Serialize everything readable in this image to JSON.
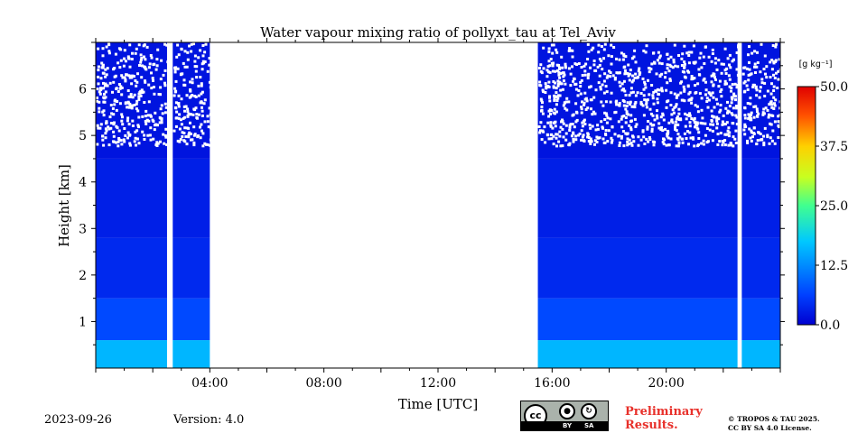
{
  "chart_data": {
    "type": "heatmap",
    "title": "Water vapour mixing ratio of pollyxt_tau at Tel_Aviv",
    "xlabel": "Time [UTC]",
    "ylabel": "Height [km]",
    "xlim_hours": [
      0,
      24
    ],
    "ylim_km": [
      0,
      7
    ],
    "x_ticks": [
      {
        "hour": 4,
        "label": "04:00"
      },
      {
        "hour": 8,
        "label": "08:00"
      },
      {
        "hour": 12,
        "label": "12:00"
      },
      {
        "hour": 16,
        "label": "16:00"
      },
      {
        "hour": 20,
        "label": "20:00"
      }
    ],
    "y_ticks": [
      1,
      2,
      3,
      4,
      5,
      6
    ],
    "colorbar": {
      "unit_label": "[g kg⁻¹]",
      "min": 0.0,
      "max": 50.0,
      "ticks": [
        "0.0",
        "12.5",
        "25.0",
        "37.5",
        "50.0"
      ],
      "colormap": "jet"
    },
    "data_segments": [
      {
        "start_hour": 0.0,
        "end_hour": 2.5,
        "top_km": 7.0
      },
      {
        "start_hour": 2.7,
        "end_hour": 4.0,
        "top_km": 7.0
      },
      {
        "start_hour": 15.5,
        "end_hour": 22.5,
        "top_km": 7.0
      },
      {
        "start_hour": 22.65,
        "end_hour": 24.0,
        "top_km": 7.0
      }
    ],
    "layers": [
      {
        "bottom_km": 0.0,
        "top_km": 0.6,
        "value": 16
      },
      {
        "bottom_km": 0.6,
        "top_km": 1.5,
        "value": 7
      },
      {
        "bottom_km": 1.5,
        "top_km": 2.8,
        "value": 4
      },
      {
        "bottom_km": 2.8,
        "top_km": 4.5,
        "value": 3
      },
      {
        "bottom_km": 4.5,
        "top_km": 7.0,
        "value": 2
      }
    ],
    "grid": false
  },
  "footer": {
    "date": "2023-09-26",
    "version": "Version: 4.0",
    "license_badge": {
      "left": "BY",
      "right": "SA",
      "cc": "cc"
    },
    "preliminary_line1": "Preliminary",
    "preliminary_line2": "Results.",
    "copyright_line1": "© TROPOS & TAU 2025.",
    "copyright_line2": "CC BY SA 4.0 License."
  }
}
